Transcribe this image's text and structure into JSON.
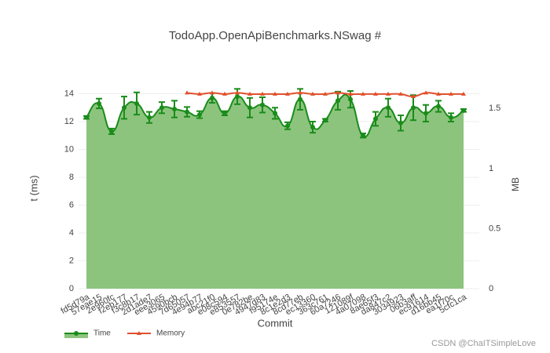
{
  "chart_data": {
    "type": "line",
    "title": "TodoApp.OpenApiBenchmarks.NSwag #",
    "xlabel": "Commit",
    "ylabel": "t (ms)",
    "y2label": "MB",
    "categories": [
      "fd5d79a",
      "57eae15",
      "2e960fc",
      "f2eb177",
      "f3c8b17",
      "2d1ade7",
      "eee3065",
      "4590bcb",
      "7d65057",
      "4e94b77",
      "abc21f0",
      "e08c594",
      "e853557",
      "0e782be",
      "4947d83",
      "f95174e",
      "8c1e2d3",
      "8cd77eb",
      "ec13360",
      "363c761",
      "60a7246",
      "121089f",
      "4a07098",
      "8ae65f3",
      "da847c2",
      "3034923",
      "06b3aff",
      "ec91614",
      "d16bb45",
      "ea1f70c",
      "5cfc1ca"
    ],
    "series": [
      {
        "name": "Time",
        "color": "#1a8c1a",
        "fill": "#8cc47e",
        "marker": "circle",
        "values": [
          12.3,
          13.3,
          11.3,
          13.0,
          13.3,
          12.3,
          13.0,
          12.9,
          12.7,
          12.5,
          13.7,
          12.6,
          13.8,
          13.0,
          13.2,
          12.6,
          11.7,
          13.6,
          11.6,
          12.1,
          13.5,
          13.6,
          11.0,
          12.2,
          13.0,
          11.9,
          13.0,
          12.6,
          13.1,
          12.3,
          12.8
        ],
        "errors": [
          0.1,
          0.35,
          0.2,
          0.8,
          0.8,
          0.4,
          0.4,
          0.6,
          0.35,
          0.25,
          0.35,
          0.15,
          0.55,
          0.7,
          0.55,
          0.4,
          0.25,
          0.75,
          0.4,
          0.1,
          0.65,
          0.6,
          0.15,
          0.5,
          0.65,
          0.55,
          0.9,
          0.6,
          0.4,
          0.3,
          0.1
        ]
      },
      {
        "name": "Memory",
        "color": "#e0502c",
        "marker": "triangle",
        "axis": "y2",
        "values": [
          null,
          null,
          null,
          null,
          null,
          null,
          null,
          null,
          1.63,
          1.62,
          1.63,
          1.62,
          1.63,
          1.62,
          1.62,
          1.62,
          1.62,
          1.63,
          1.62,
          1.62,
          1.63,
          1.62,
          1.62,
          1.62,
          1.62,
          1.62,
          1.6,
          1.63,
          1.62,
          1.62,
          1.62
        ]
      }
    ],
    "ylim": [
      0,
      15.1
    ],
    "yticks": [
      0,
      2,
      4,
      6,
      8,
      10,
      12,
      14
    ],
    "y2lim": [
      0,
      1.75
    ],
    "y2ticks": [
      0,
      0.5,
      1,
      1.5
    ],
    "grid": true,
    "legend": "bottom-left",
    "watermark": "CSDN @ChaITSimpleLove"
  }
}
